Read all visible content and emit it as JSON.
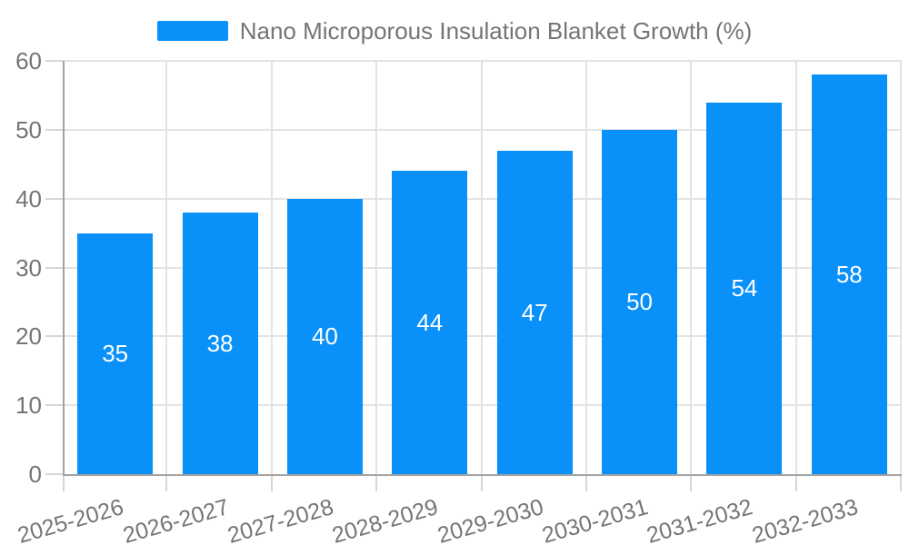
{
  "legend": {
    "label": "Nano Microporous Insulation Blanket Growth (%)"
  },
  "chart_data": {
    "type": "bar",
    "title": "Nano Microporous Insulation Blanket Growth (%)",
    "categories": [
      "2025-2026",
      "2026-2027",
      "2027-2028",
      "2028-2029",
      "2029-2030",
      "2030-2031",
      "2031-2032",
      "2032-2033"
    ],
    "values": [
      35,
      38,
      40,
      44,
      47,
      50,
      54,
      58
    ],
    "xlabel": "",
    "ylabel": "",
    "ylim": [
      0,
      60
    ],
    "yticks": [
      0,
      10,
      20,
      30,
      40,
      50,
      60
    ],
    "grid": "horizontal gridlines every 10 units, vertical gridlines at category boundaries",
    "legend_position": "top-center",
    "value_labels": "white, centered inside each bar",
    "x_tick_rotation_deg": -16
  },
  "colors": {
    "bar": "#0990f9",
    "value_label": "#ffffff",
    "axis_line": "#a3a3a3",
    "gridline": "#e3e3e3",
    "tick_mark": "#d6d6d6",
    "tick_text": "#757575",
    "legend_text": "#757575",
    "background": "#ffffff"
  }
}
